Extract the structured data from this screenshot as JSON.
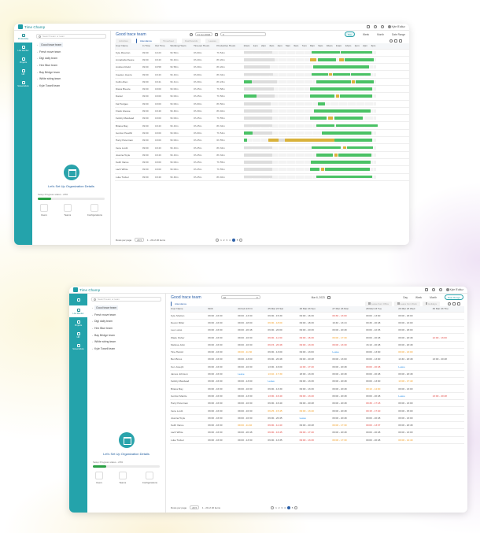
{
  "app": {
    "name": "Time Champ",
    "user": "Kyle B'alluz"
  },
  "rail": [
    {
      "label": "Productivity"
    },
    {
      "label": "Live Monitor"
    },
    {
      "label": "Projects"
    },
    {
      "label": "HR"
    },
    {
      "label": "Screenshots"
    }
  ],
  "rail2": [
    {
      "label": ""
    },
    {
      "label": "Live Monitor"
    },
    {
      "label": "Projects"
    },
    {
      "label": "HR"
    },
    {
      "label": "Screenshots"
    }
  ],
  "search_placeholder": "Search team or team",
  "teams": [
    "Good trace team",
    "Fresh move team",
    "Digi daily team",
    "Hex Blue team",
    "Bay Bridge team",
    "White string team",
    "Kyle Towell team"
  ],
  "org": {
    "title": "Let's Set Up Organization Details",
    "progress_text": "Setup Progress status - 20%",
    "progress": 0.2,
    "actions": [
      "Users",
      "Teams",
      "Configurations"
    ]
  },
  "w1": {
    "title": "Good trace team",
    "date": "21 Jun 2022",
    "day_btn": "Day",
    "views": [
      "Week",
      "Month",
      "Date Range"
    ],
    "tabs": [
      "Activities",
      "Attendance",
      "Timesheet",
      "Dashboards",
      "Leaves"
    ],
    "cols": [
      "User Name",
      "In Time",
      "Out Time",
      "Working Hours",
      "Timeout Hours",
      "Productive Hours"
    ],
    "hours": [
      "12am",
      "1am",
      "2am",
      "3am",
      "4am",
      "5am",
      "6am",
      "7am",
      "8am",
      "9am",
      "10am",
      "11am",
      "12pm",
      "1pm",
      "2pm",
      "3pm"
    ],
    "rows": [
      [
        "Kyle Riverton",
        "09:00",
        "19:23",
        "9h 50m",
        "0h 00m",
        "7h 54m"
      ],
      [
        "Annabella Reave",
        "09:00",
        "18:43",
        "9h 43m",
        "0h 20m",
        "8h 20m"
      ],
      [
        "Andrew Rudd",
        "09:00",
        "18:58",
        "9h 58m",
        "0h 30m",
        "8h 20m"
      ],
      [
        "Caeden Jiesza",
        "09:00",
        "18:43",
        "9h 43m",
        "0h 00m",
        "8h 32m"
      ],
      [
        "Collin Allen",
        "09:00",
        "18:41",
        "9h 41m",
        "0h 30m",
        "8h 23m"
      ],
      [
        "Diana Breeze",
        "09:00",
        "18:00",
        "9h 00m",
        "0h 25m",
        "7h 58m"
      ],
      [
        "Daniel",
        "09:00",
        "18:00",
        "9h 00m",
        "0h 25m",
        "7h 56m"
      ],
      [
        "Fal Hodges",
        "09:00",
        "18:00",
        "9h 00m",
        "0h 00m",
        "8h 50m"
      ],
      [
        "Frank Gleuse",
        "09:00",
        "18:40",
        "9h 40m",
        "0h 30m",
        "8h 40m"
      ],
      [
        "Felicity Macdead",
        "09:00",
        "18:00",
        "9h 00m",
        "0h 25m",
        "7h 55m"
      ],
      [
        "Briana May",
        "09:00",
        "18:43",
        "9h 43m",
        "0h 25m",
        "8h 32m"
      ],
      [
        "Gordon Heathil",
        "09:00",
        "18:00",
        "9h 00m",
        "0h 00m",
        "7h 54m"
      ],
      [
        "Harry Peterman",
        "09:00",
        "18:00",
        "9h 00m",
        "0h 25m",
        "6h 55m"
      ],
      [
        "Irene Lovitt",
        "09:00",
        "18:43",
        "9h 43m",
        "0h 25m",
        "8h 32m"
      ],
      [
        "Joanna Toyle",
        "09:00",
        "18:43",
        "9h 43m",
        "0h 25m",
        "8h 32m"
      ],
      [
        "Keith Vance",
        "09:00",
        "18:00",
        "9h 00m",
        "0h 25m",
        "7h 55m"
      ],
      [
        "Lach White",
        "09:00",
        "18:00",
        "9h 00m",
        "0h 25m",
        "7h 55m"
      ],
      [
        "Luke Tucker",
        "09:00",
        "18:40",
        "9h 40m",
        "0h 25m",
        "8h 40m"
      ]
    ],
    "rows_per_page_label": "Rows per page",
    "rows_per_page": "20",
    "range": "1 - 20 of 20 items",
    "pages": [
      "1",
      "2",
      "3",
      "4",
      "5"
    ]
  },
  "w2": {
    "title": "Good trace team",
    "filter": "All",
    "date": "Mar 6, 2023",
    "views": [
      "Day",
      "Week",
      "Month",
      "Date Range"
    ],
    "legend": [
      "Leave from Office",
      "Leave from Work",
      "Holidays"
    ],
    "tabs": [
      "Attendance"
    ],
    "cols": [
      "User Name",
      "Shift",
      "24 Feb 23 Fri",
      "25 Mar 23 Sat",
      "26 Mar 23 Sun",
      "27 Mar 23 Mon",
      "28 Mar 23 Tue",
      "29 Mar 23 Wed",
      "30 Mar 23 Thu"
    ],
    "rows": [
      [
        "Kyle Shelton",
        "09:00 - 16:30",
        [
          "09:00 - 13:30",
          ""
        ],
        [
          "09:00 - 15:30",
          ""
        ],
        [
          "09:00 - 16:30",
          ""
        ],
        [
          "09:30 - 13:00",
          "r"
        ],
        [
          "09:00 - 13:00",
          ""
        ],
        [
          "09:00 - 18:00",
          ""
        ],
        [
          "",
          ""
        ]
      ],
      [
        "Devon Miller",
        "09:00 - 16:30",
        [
          "09:00 - 18:00",
          ""
        ],
        [
          "09:00 - 18:00",
          "o"
        ],
        [
          "09:00 - 18:30",
          ""
        ],
        [
          "16:40 - 13:13",
          ""
        ],
        [
          "09:30 - 20:48",
          ""
        ],
        [
          "09:00 - 13:00",
          ""
        ],
        [
          "",
          ""
        ]
      ],
      [
        "Lee Lucas",
        "09:00 - 16:30",
        [
          "09:00 - 20:48",
          ""
        ],
        [
          "09:00 - 20:00",
          ""
        ],
        [
          "09:00 - 20:30",
          ""
        ],
        [
          "09:00 - 20:48",
          ""
        ],
        [
          "09:00 - 22:45",
          ""
        ],
        [
          "09:00 - 18:00",
          ""
        ],
        [
          "",
          ""
        ]
      ],
      [
        "Wade Fisher",
        "09:00 - 16:30",
        [
          "09:00 - 16:30",
          ""
        ],
        [
          "09:00 - 11:30",
          "r"
        ],
        [
          "09:00 - 16:30",
          "r"
        ],
        [
          "09:00 - 17:30",
          "o"
        ],
        [
          "09:00 - 20:48",
          ""
        ],
        [
          "09:00 - 20:48",
          ""
        ],
        [
          "12:00 - 13:00",
          "r"
        ]
      ],
      [
        "Melissa John",
        "09:00 - 16:30",
        [
          "09:00 - 16:30",
          ""
        ],
        [
          "09:15 - 20:48",
          "r"
        ],
        [
          "09:00 - 13:30",
          "r"
        ],
        [
          "09:00 - 13:30",
          "r"
        ],
        [
          "16:10 - 20:48",
          ""
        ],
        [
          "09:00 - 20:48",
          ""
        ],
        [
          "",
          ""
        ]
      ],
      [
        "Tina Hamid",
        "09:00 - 16:30",
        [
          "09:00 - 11:30",
          "o"
        ],
        [
          "09:00 - 13:00",
          ""
        ],
        [
          "09:00 - 13:00",
          ""
        ],
        [
          "Leave",
          "b"
        ],
        [
          "09:00 - 13:00",
          ""
        ],
        [
          "09:00 - 13:00",
          "o"
        ],
        [
          "",
          ""
        ]
      ],
      [
        "Ben Bruss",
        "09:00 - 16:30",
        [
          "09:00 - 13:00",
          ""
        ],
        [
          "09:00 - 20:48",
          ""
        ],
        [
          "09:00 - 20:48",
          ""
        ],
        [
          "09:00 - 13:00",
          ""
        ],
        [
          "09:00 - 13:00",
          ""
        ],
        [
          "13:40 - 20:48",
          ""
        ],
        [
          "13:00 - 20:48",
          ""
        ]
      ],
      [
        "Ken Joseph",
        "09:00 - 16:30",
        [
          "09:00 - 16:30",
          ""
        ],
        [
          "13:00 - 16:00",
          ""
        ],
        [
          "14:00 - 17:40",
          "r"
        ],
        [
          "09:00 - 20:48",
          ""
        ],
        [
          "09:00 - 20:48",
          "r"
        ],
        [
          "Leave",
          "b"
        ],
        [
          "",
          ""
        ]
      ],
      [
        "James Johnson",
        "09:00 - 16:30",
        [
          "Leave",
          "b"
        ],
        [
          "13:40 - 17:30",
          "o"
        ],
        [
          "18:00 - 13:30",
          ""
        ],
        [
          "09:00 - 20:48",
          ""
        ],
        [
          "09:00 - 20:48",
          ""
        ],
        [
          "09:00 - 20:48",
          ""
        ],
        [
          "",
          ""
        ]
      ],
      [
        "Felicity Macdead",
        "09:00 - 16:30",
        [
          "09:00 - 13:00",
          ""
        ],
        [
          "Leave",
          "b"
        ],
        [
          "09:00 - 13:30",
          ""
        ],
        [
          "09:00 - 20:48",
          ""
        ],
        [
          "09:00 - 13:00",
          ""
        ],
        [
          "13:00 - 17:40",
          "o"
        ],
        [
          "",
          ""
        ]
      ],
      [
        "Briana May",
        "09:00 - 16:30",
        [
          "09:00 - 16:30",
          ""
        ],
        [
          "09:00 - 13:30",
          ""
        ],
        [
          "09:00 - 13:30",
          ""
        ],
        [
          "09:00 - 20:48",
          ""
        ],
        [
          "09:10 - 14:00",
          "o"
        ],
        [
          "09:00 - 13:00",
          ""
        ],
        [
          "",
          ""
        ]
      ],
      [
        "Gordon Mantle",
        "09:00 - 16:30",
        [
          "09:00 - 13:30",
          ""
        ],
        [
          "13:00 - 16:40",
          "r"
        ],
        [
          "09:00 - 13:40",
          "r"
        ],
        [
          "09:00 - 20:48",
          ""
        ],
        [
          "09:00 - 20:48",
          ""
        ],
        [
          "Leave",
          "b"
        ],
        [
          "13:00 - 20:48",
          "r"
        ]
      ],
      [
        "Harry Peterman",
        "09:00 - 16:30",
        [
          "09:00 - 16:30",
          ""
        ],
        [
          "09:00 - 16:40",
          ""
        ],
        [
          "09:00 - 20:48",
          ""
        ],
        [
          "09:00 - 20:48",
          ""
        ],
        [
          "09:30 - 17:18",
          "r"
        ],
        [
          "09:00 - 13:00",
          ""
        ],
        [
          "",
          ""
        ]
      ],
      [
        "Irene Lovitt",
        "09:00 - 16:30",
        [
          "09:00 - 16:30",
          ""
        ],
        [
          "09:25 - 15:45",
          "o"
        ],
        [
          "09:00 - 13:40",
          "o"
        ],
        [
          "09:00 - 20:48",
          ""
        ],
        [
          "09:15 - 17:40",
          "r"
        ],
        [
          "09:00 - 15:00",
          ""
        ],
        [
          "",
          ""
        ]
      ],
      [
        "Joanna Toyle",
        "09:00 - 16:30",
        [
          "09:00 - 16:30",
          ""
        ],
        [
          "09:00 - 20:45",
          ""
        ],
        [
          "Leave",
          "b"
        ],
        [
          "09:00 - 20:48",
          ""
        ],
        [
          "09:00 - 20:48",
          ""
        ],
        [
          "09:00 - 13:00",
          ""
        ],
        [
          "",
          ""
        ]
      ],
      [
        "Keith Vance",
        "09:00 - 16:30",
        [
          "09:00 - 11:40",
          "o"
        ],
        [
          "09:00 - 11:40",
          "r"
        ],
        [
          "09:00 - 20:48",
          ""
        ],
        [
          "09:00 - 17:30",
          "o"
        ],
        [
          "09:00 - 13:37",
          "r"
        ],
        [
          "09:00 - 20:48",
          ""
        ],
        [
          "",
          ""
        ]
      ],
      [
        "Lach White",
        "09:00 - 16:30",
        [
          "09:00 - 20:48",
          ""
        ],
        [
          "09:00 - 16:45",
          "r"
        ],
        [
          "09:00 - 17:40",
          "r"
        ],
        [
          "09:00 - 20:48",
          ""
        ],
        [
          "09:00 - 20:48",
          ""
        ],
        [
          "09:00 - 13:00",
          ""
        ],
        [
          "",
          ""
        ]
      ],
      [
        "Luke Tucker",
        "09:00 - 16:30",
        [
          "09:00 - 13:30",
          ""
        ],
        [
          "09:00 - 13:35",
          ""
        ],
        [
          "09:00 - 13:30",
          "r"
        ],
        [
          "09:00 - 17:30",
          "o"
        ],
        [
          "09:00 - 20:48",
          ""
        ],
        [
          "09:00 - 14:40",
          "o"
        ],
        [
          "",
          ""
        ]
      ]
    ],
    "rows_per_page_label": "Rows per page",
    "rows_per_page": "20",
    "range": "1 - 20 of 20 items",
    "pages": [
      "1",
      "2",
      "3",
      "4",
      "5"
    ]
  }
}
